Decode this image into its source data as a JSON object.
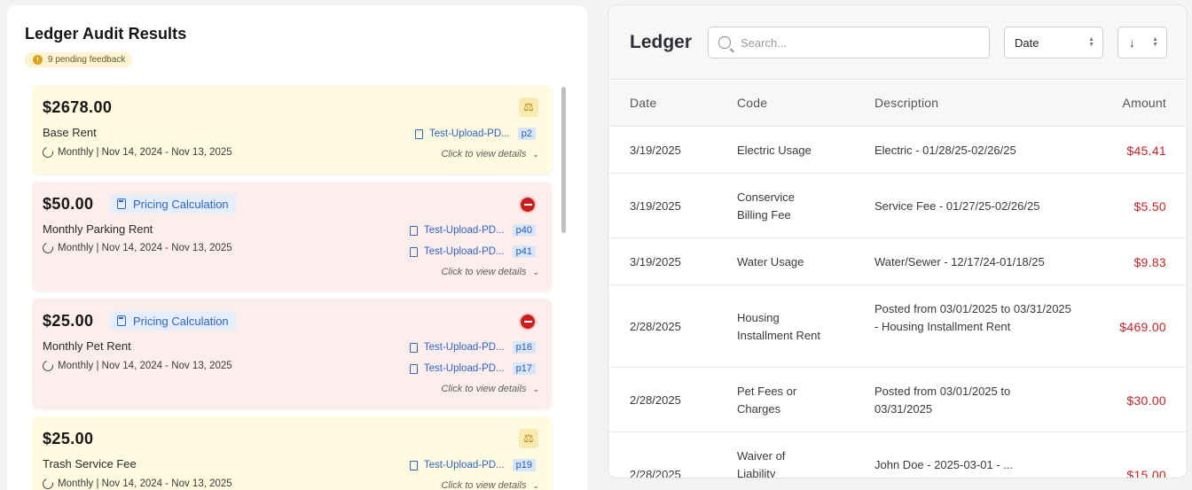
{
  "audit": {
    "title": "Ledger Audit Results",
    "pending_text": "9 pending feedback",
    "details_text": "Click to view details",
    "cards": [
      {
        "amount": "$2678.00",
        "label": "Base Rent",
        "period": "Monthly | Nov 14, 2024 - Nov 13, 2025",
        "docs": [
          {
            "name": "Test-Upload-PD...",
            "page": "p2"
          }
        ]
      },
      {
        "amount": "$50.00",
        "tag": "Pricing Calculation",
        "label": "Monthly Parking Rent",
        "period": "Monthly | Nov 14, 2024 - Nov 13, 2025",
        "docs": [
          {
            "name": "Test-Upload-PD...",
            "page": "p40"
          },
          {
            "name": "Test-Upload-PD...",
            "page": "p41"
          }
        ]
      },
      {
        "amount": "$25.00",
        "tag": "Pricing Calculation",
        "label": "Monthly Pet Rent",
        "period": "Monthly | Nov 14, 2024 - Nov 13, 2025",
        "docs": [
          {
            "name": "Test-Upload-PD...",
            "page": "p16"
          },
          {
            "name": "Test-Upload-PD...",
            "page": "p17"
          }
        ]
      },
      {
        "amount": "$25.00",
        "label": "Trash Service Fee",
        "period": "Monthly | Nov 14, 2024 - Nov 13, 2025",
        "docs": [
          {
            "name": "Test-Upload-PD...",
            "page": "p19"
          }
        ]
      }
    ]
  },
  "ledger": {
    "title": "Ledger",
    "search_placeholder": "Search...",
    "sort_field": "Date",
    "sort_dir": "↓",
    "columns": [
      "Date",
      "Code",
      "Description",
      "Amount"
    ],
    "rows": [
      {
        "date": "3/19/2025",
        "code": "Electric Usage",
        "description": "Electric - 01/28/25-02/26/25",
        "amount": "$45.41"
      },
      {
        "date": "3/19/2025",
        "code": "Conservice Billing Fee",
        "description": "Service Fee - 01/27/25-02/26/25",
        "amount": "$5.50"
      },
      {
        "date": "3/19/2025",
        "code": "Water Usage",
        "description": "Water/Sewer - 12/17/24-01/18/25",
        "amount": "$9.83"
      },
      {
        "date": "2/28/2025",
        "code": "Housing Installment Rent",
        "description": "Posted from 03/01/2025 to 03/31/2025 - Housing Installment Rent",
        "amount": "$469.00"
      },
      {
        "date": "2/28/2025",
        "code": "Pet Fees or Charges",
        "description": "Posted from 03/01/2025 to 03/31/2025",
        "amount": "$30.00"
      },
      {
        "date": "2/28/2025",
        "code": "Waiver of Liability",
        "description": "John Doe - 2025-03-01 - ...",
        "amount": "$15.00"
      }
    ]
  }
}
